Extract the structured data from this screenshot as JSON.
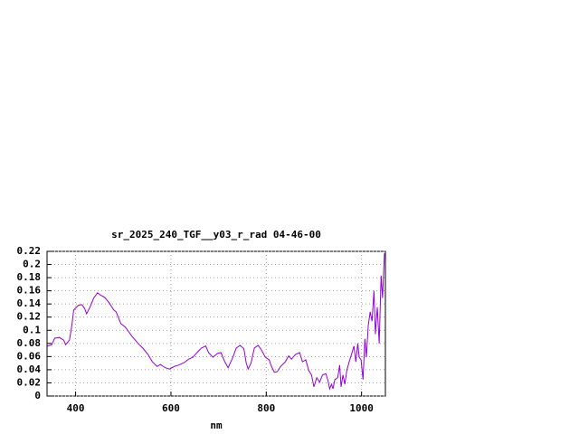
{
  "chart_data": {
    "type": "line",
    "title": "sr_2025_240_TGF__y03_r_rad 04-46-00",
    "x_label": "nm",
    "xlim": [
      340,
      1050
    ],
    "xticks": [
      400,
      600,
      800,
      1000
    ],
    "ylim": [
      0,
      0.22
    ],
    "yticks": [
      0,
      0.02,
      0.04,
      0.06,
      0.08,
      0.1,
      0.12,
      0.14,
      0.16,
      0.18,
      0.2,
      0.22
    ],
    "grid": true,
    "series": [
      {
        "color": "#9400d3",
        "x": [
          341,
          350,
          356,
          366,
          375,
          379,
          387,
          392,
          396,
          406,
          413,
          419,
          423,
          430,
          438,
          446,
          451,
          461,
          470,
          480,
          485,
          495,
          504,
          518,
          531,
          542,
          552,
          561,
          571,
          578,
          588,
          597,
          607,
          616,
          628,
          637,
          646,
          656,
          664,
          673,
          679,
          688,
          698,
          705,
          713,
          720,
          730,
          737,
          745,
          753,
          758,
          762,
          768,
          775,
          783,
          790,
          798,
          806,
          811,
          817,
          823,
          830,
          840,
          847,
          853,
          861,
          870,
          876,
          883,
          889,
          895,
          900,
          906,
          912,
          918,
          925,
          929,
          933,
          937,
          940,
          944,
          950,
          954,
          957,
          961,
          965,
          969,
          974,
          980,
          984,
          988,
          992,
          995,
          999,
          1003,
          1007,
          1010,
          1014,
          1018,
          1022,
          1026,
          1029,
          1033,
          1037,
          1041,
          1044,
          1048
        ],
        "values": [
          0.076,
          0.078,
          0.088,
          0.089,
          0.085,
          0.078,
          0.085,
          0.107,
          0.131,
          0.138,
          0.139,
          0.133,
          0.125,
          0.135,
          0.149,
          0.157,
          0.154,
          0.15,
          0.142,
          0.131,
          0.128,
          0.11,
          0.105,
          0.091,
          0.08,
          0.072,
          0.063,
          0.052,
          0.045,
          0.048,
          0.043,
          0.041,
          0.045,
          0.047,
          0.051,
          0.056,
          0.059,
          0.067,
          0.073,
          0.076,
          0.066,
          0.059,
          0.065,
          0.066,
          0.052,
          0.043,
          0.059,
          0.073,
          0.077,
          0.072,
          0.05,
          0.041,
          0.05,
          0.073,
          0.077,
          0.07,
          0.059,
          0.055,
          0.045,
          0.036,
          0.037,
          0.045,
          0.052,
          0.061,
          0.056,
          0.063,
          0.066,
          0.052,
          0.055,
          0.039,
          0.032,
          0.014,
          0.028,
          0.021,
          0.032,
          0.034,
          0.025,
          0.011,
          0.018,
          0.011,
          0.025,
          0.028,
          0.047,
          0.014,
          0.032,
          0.018,
          0.039,
          0.052,
          0.066,
          0.076,
          0.052,
          0.08,
          0.059,
          0.055,
          0.025,
          0.087,
          0.059,
          0.107,
          0.128,
          0.114,
          0.16,
          0.094,
          0.135,
          0.08,
          0.183,
          0.149,
          0.217
        ]
      }
    ]
  }
}
